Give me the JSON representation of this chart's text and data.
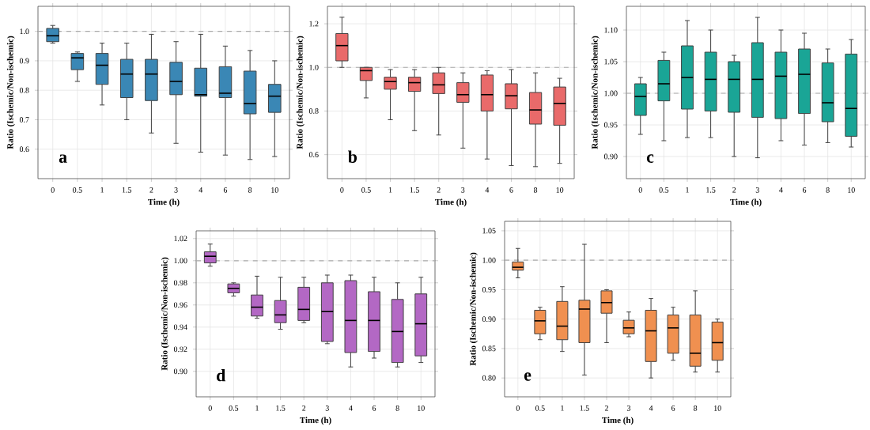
{
  "chart_data": [
    {
      "type": "box",
      "xlabel": "Time (h)",
      "ylabel": "Ratio (Ischemic/Non-ischemic)",
      "annotations": [
        "a"
      ],
      "categories": [
        "0",
        "0.5",
        "1",
        "1.5",
        "2",
        "3",
        "4",
        "6",
        "8",
        "10"
      ],
      "color": "#3a87b5",
      "grid": true,
      "ylim": [
        0.5,
        1.085
      ],
      "yticks": [
        0.6,
        0.7,
        0.8,
        0.9,
        {
          "value": 1.0,
          "label": "1.0"
        }
      ],
      "ref_lines": [
        {
          "axis": "y",
          "value": 1.0,
          "color": "#aaaaaa",
          "line_style": "dashed"
        }
      ],
      "boxes": [
        {
          "low": 0.96,
          "q1": 0.965,
          "median": 0.985,
          "q3": 1.01,
          "high": 1.02
        },
        {
          "low": 0.83,
          "q1": 0.87,
          "median": 0.91,
          "q3": 0.925,
          "high": 0.93
        },
        {
          "low": 0.75,
          "q1": 0.82,
          "median": 0.885,
          "q3": 0.925,
          "high": 0.96
        },
        {
          "low": 0.7,
          "q1": 0.775,
          "median": 0.855,
          "q3": 0.905,
          "high": 0.96
        },
        {
          "low": 0.655,
          "q1": 0.765,
          "median": 0.855,
          "q3": 0.905,
          "high": 0.99
        },
        {
          "low": 0.62,
          "q1": 0.785,
          "median": 0.83,
          "q3": 0.895,
          "high": 0.965
        },
        {
          "low": 0.59,
          "q1": 0.78,
          "median": 0.785,
          "q3": 0.875,
          "high": 0.99
        },
        {
          "low": 0.58,
          "q1": 0.775,
          "median": 0.79,
          "q3": 0.88,
          "high": 0.95
        },
        {
          "low": 0.565,
          "q1": 0.72,
          "median": 0.755,
          "q3": 0.865,
          "high": 0.935
        },
        {
          "low": 0.575,
          "q1": 0.725,
          "median": 0.78,
          "q3": 0.82,
          "high": 0.9
        }
      ]
    },
    {
      "type": "box",
      "xlabel": "Time (h)",
      "ylabel": "Ratio (Ischemic/Non-ischemic)",
      "annotations": [
        "b"
      ],
      "categories": [
        "0",
        "0.5",
        "1",
        "1.5",
        "2",
        "3",
        "4",
        "6",
        "8",
        "10"
      ],
      "color": "#e96a6a",
      "grid": true,
      "ylim": [
        0.49,
        1.28
      ],
      "yticks": [
        0.6,
        0.8,
        {
          "value": 1.0,
          "label": "1.0"
        },
        1.2
      ],
      "ref_lines": [
        {
          "axis": "y",
          "value": 1.0,
          "color": "#aaaaaa",
          "line_style": "dashed"
        }
      ],
      "boxes": [
        {
          "low": 1.0,
          "q1": 1.03,
          "median": 1.1,
          "q3": 1.155,
          "high": 1.23
        },
        {
          "low": 0.86,
          "q1": 0.94,
          "median": 0.985,
          "q3": 1.0,
          "high": 1.0
        },
        {
          "low": 0.76,
          "q1": 0.9,
          "median": 0.935,
          "q3": 0.955,
          "high": 0.99
        },
        {
          "low": 0.71,
          "q1": 0.89,
          "median": 0.93,
          "q3": 0.955,
          "high": 0.99
        },
        {
          "low": 0.69,
          "q1": 0.88,
          "median": 0.92,
          "q3": 0.975,
          "high": 1.0
        },
        {
          "low": 0.63,
          "q1": 0.84,
          "median": 0.875,
          "q3": 0.93,
          "high": 0.975
        },
        {
          "low": 0.58,
          "q1": 0.8,
          "median": 0.875,
          "q3": 0.965,
          "high": 0.985
        },
        {
          "low": 0.55,
          "q1": 0.81,
          "median": 0.87,
          "q3": 0.925,
          "high": 0.99
        },
        {
          "low": 0.545,
          "q1": 0.74,
          "median": 0.805,
          "q3": 0.885,
          "high": 0.975
        },
        {
          "low": 0.56,
          "q1": 0.735,
          "median": 0.835,
          "q3": 0.91,
          "high": 0.95
        }
      ]
    },
    {
      "type": "box",
      "xlabel": "Time (h)",
      "ylabel": "Ratio (Ischemic/Non-ischemic)",
      "annotations": [
        "c"
      ],
      "categories": [
        "0",
        "0.5",
        "1",
        "1.5",
        "2",
        "3",
        "4",
        "6",
        "8",
        "10"
      ],
      "color": "#1aa596",
      "grid": true,
      "ylim": [
        0.865,
        1.1375
      ],
      "yticks": [
        {
          "value": 0.9,
          "label": "0.90"
        },
        0.95,
        {
          "value": 1.0,
          "label": "1.00"
        },
        1.05,
        {
          "value": 1.1,
          "label": "1.10"
        }
      ],
      "ref_lines": [
        {
          "axis": "y",
          "value": 1.0,
          "color": "#aaaaaa",
          "line_style": "dashed"
        }
      ],
      "boxes": [
        {
          "low": 0.935,
          "q1": 0.965,
          "median": 0.995,
          "q3": 1.015,
          "high": 1.025
        },
        {
          "low": 0.925,
          "q1": 0.988,
          "median": 1.015,
          "q3": 1.052,
          "high": 1.065
        },
        {
          "low": 0.93,
          "q1": 0.975,
          "median": 1.025,
          "q3": 1.075,
          "high": 1.115
        },
        {
          "low": 0.93,
          "q1": 0.972,
          "median": 1.022,
          "q3": 1.065,
          "high": 1.1
        },
        {
          "low": 0.9,
          "q1": 0.97,
          "median": 1.022,
          "q3": 1.05,
          "high": 1.06
        },
        {
          "low": 0.898,
          "q1": 0.962,
          "median": 1.022,
          "q3": 1.08,
          "high": 1.12
        },
        {
          "low": 0.925,
          "q1": 0.96,
          "median": 1.027,
          "q3": 1.065,
          "high": 1.1
        },
        {
          "low": 0.918,
          "q1": 0.968,
          "median": 1.03,
          "q3": 1.07,
          "high": 1.095
        },
        {
          "low": 0.922,
          "q1": 0.955,
          "median": 0.985,
          "q3": 1.048,
          "high": 1.07
        },
        {
          "low": 0.915,
          "q1": 0.932,
          "median": 0.976,
          "q3": 1.062,
          "high": 1.085
        }
      ]
    },
    {
      "type": "box",
      "xlabel": "Time (h)",
      "ylabel": "Ratio (Ischemic/Non-ischemic)",
      "annotations": [
        "d"
      ],
      "categories": [
        "0",
        "0.5",
        "1",
        "1.5",
        "2",
        "3",
        "4",
        "6",
        "8",
        "10"
      ],
      "color": "#b368c4",
      "grid": true,
      "ylim": [
        0.877,
        1.027
      ],
      "yticks": [
        {
          "value": 0.9,
          "label": "0.90"
        },
        0.92,
        0.94,
        0.96,
        0.98,
        {
          "value": 1.0,
          "label": "1.00"
        },
        1.02
      ],
      "ref_lines": [
        {
          "axis": "y",
          "value": 1.0,
          "color": "#aaaaaa",
          "line_style": "dashed"
        }
      ],
      "boxes": [
        {
          "low": 0.995,
          "q1": 0.998,
          "median": 1.004,
          "q3": 1.008,
          "high": 1.015
        },
        {
          "low": 0.968,
          "q1": 0.971,
          "median": 0.975,
          "q3": 0.979,
          "high": 0.98
        },
        {
          "low": 0.948,
          "q1": 0.95,
          "median": 0.958,
          "q3": 0.969,
          "high": 0.986
        },
        {
          "low": 0.938,
          "q1": 0.944,
          "median": 0.951,
          "q3": 0.964,
          "high": 0.985
        },
        {
          "low": 0.944,
          "q1": 0.946,
          "median": 0.956,
          "q3": 0.976,
          "high": 0.985
        },
        {
          "low": 0.925,
          "q1": 0.927,
          "median": 0.954,
          "q3": 0.98,
          "high": 0.987
        },
        {
          "low": 0.904,
          "q1": 0.917,
          "median": 0.946,
          "q3": 0.982,
          "high": 0.987
        },
        {
          "low": 0.912,
          "q1": 0.918,
          "median": 0.946,
          "q3": 0.972,
          "high": 0.985
        },
        {
          "low": 0.904,
          "q1": 0.908,
          "median": 0.936,
          "q3": 0.965,
          "high": 0.98
        },
        {
          "low": 0.908,
          "q1": 0.914,
          "median": 0.943,
          "q3": 0.97,
          "high": 0.985
        }
      ]
    },
    {
      "type": "box",
      "xlabel": "Time (h)",
      "ylabel": "Ratio (Ischemic/Non-ischemic)",
      "annotations": [
        "e"
      ],
      "categories": [
        "0",
        "0.5",
        "1",
        "1.5",
        "2",
        "3",
        "4",
        "6",
        "8",
        "10"
      ],
      "color": "#f09050",
      "grid": true,
      "ylim": [
        0.768,
        1.066
      ],
      "yticks": [
        {
          "value": 0.8,
          "label": "0.80"
        },
        0.85,
        {
          "value": 0.9,
          "label": "0.90"
        },
        0.95,
        {
          "value": 1.0,
          "label": "1.00"
        },
        1.05
      ],
      "ref_lines": [
        {
          "axis": "y",
          "value": 1.0,
          "color": "#aaaaaa",
          "line_style": "dashed"
        }
      ],
      "boxes": [
        {
          "low": 0.97,
          "q1": 0.983,
          "median": 0.988,
          "q3": 0.997,
          "high": 1.02
        },
        {
          "low": 0.865,
          "q1": 0.875,
          "median": 0.897,
          "q3": 0.915,
          "high": 0.92
        },
        {
          "low": 0.845,
          "q1": 0.865,
          "median": 0.888,
          "q3": 0.93,
          "high": 0.955
        },
        {
          "low": 0.805,
          "q1": 0.86,
          "median": 0.917,
          "q3": 0.932,
          "high": 1.027
        },
        {
          "low": 0.86,
          "q1": 0.91,
          "median": 0.928,
          "q3": 0.948,
          "high": 0.95
        },
        {
          "low": 0.87,
          "q1": 0.875,
          "median": 0.885,
          "q3": 0.898,
          "high": 0.912
        },
        {
          "low": 0.8,
          "q1": 0.828,
          "median": 0.88,
          "q3": 0.915,
          "high": 0.935
        },
        {
          "low": 0.83,
          "q1": 0.842,
          "median": 0.885,
          "q3": 0.907,
          "high": 0.92
        },
        {
          "low": 0.81,
          "q1": 0.82,
          "median": 0.842,
          "q3": 0.907,
          "high": 0.948
        },
        {
          "low": 0.81,
          "q1": 0.83,
          "median": 0.86,
          "q3": 0.895,
          "high": 0.9
        }
      ]
    }
  ]
}
